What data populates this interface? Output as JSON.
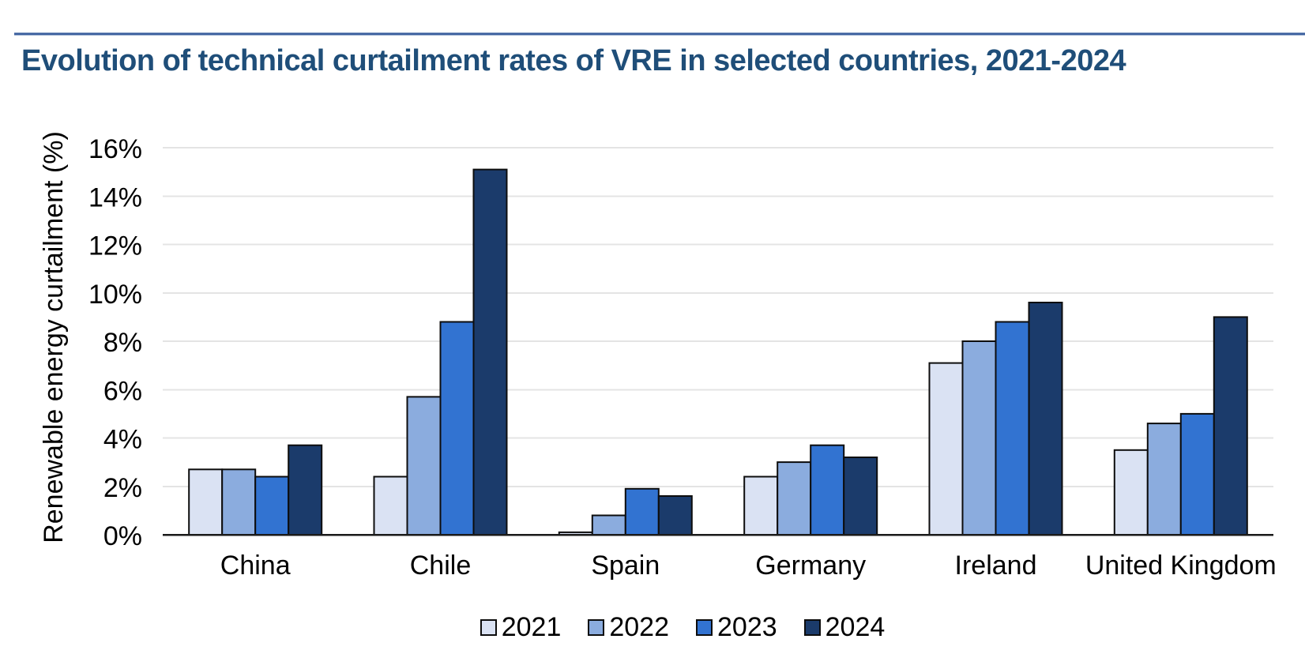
{
  "header": {
    "title": "Evolution of technical curtailment rates of VRE in selected countries, 2021-2024",
    "title_color": "#1F4E79",
    "rule_color": "#3C5F9E"
  },
  "chart_data": {
    "type": "bar",
    "title": "Evolution of technical curtailment rates of VRE in selected countries, 2021-2024",
    "categories": [
      "China",
      "Chile",
      "Spain",
      "Germany",
      "Ireland",
      "United Kingdom"
    ],
    "series": [
      {
        "name": "2021",
        "color": "#DAE2F3",
        "values": [
          2.7,
          2.4,
          0.1,
          2.4,
          7.1,
          3.5
        ]
      },
      {
        "name": "2022",
        "color": "#8BACDE",
        "values": [
          2.7,
          5.7,
          0.8,
          3.0,
          8.0,
          4.6
        ]
      },
      {
        "name": "2023",
        "color": "#3273D1",
        "values": [
          2.4,
          8.8,
          1.9,
          3.7,
          8.8,
          5.0
        ]
      },
      {
        "name": "2024",
        "color": "#1B3B6B",
        "values": [
          3.7,
          15.1,
          1.6,
          3.2,
          9.6,
          9.0
        ]
      }
    ],
    "xlabel": "",
    "ylabel": "Renewable energy curtailment (%)",
    "ylim": [
      0,
      16
    ],
    "ytick_step": 2,
    "ytick_format": "percent",
    "ytick_labels": [
      "0%",
      "2%",
      "4%",
      "6%",
      "8%",
      "10%",
      "12%",
      "14%",
      "16%"
    ],
    "grid": true,
    "legend_position": "bottom",
    "bar_border_color": "#0D0D0D",
    "gridline_color": "#E4E4E4",
    "axis_color": "#1A1A1A",
    "text_color": "#000000"
  }
}
